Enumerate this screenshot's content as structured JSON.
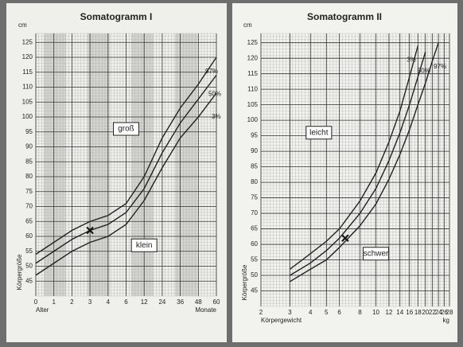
{
  "chart_data": [
    {
      "type": "line",
      "title": "Somatogramm I",
      "categories": [
        "0",
        "1",
        "2",
        "3",
        "4",
        "6",
        "12",
        "24",
        "36",
        "48",
        "60"
      ],
      "xlabel": "Alter",
      "x_unit": "Monate",
      "ylabel": "Körpergröße",
      "y_unit": "cm",
      "ylim": [
        40,
        128
      ],
      "yticks": [
        45,
        50,
        55,
        60,
        65,
        70,
        75,
        80,
        85,
        90,
        95,
        100,
        105,
        110,
        115,
        120,
        125
      ],
      "series": [
        {
          "name": "97%",
          "color": "#222222",
          "values": [
            54,
            58,
            62,
            65,
            67,
            71,
            80,
            93,
            103,
            111,
            120
          ]
        },
        {
          "name": "50%",
          "color": "#222222",
          "values": [
            51,
            55,
            59,
            62,
            64,
            68,
            76,
            88,
            98,
            106,
            114
          ]
        },
        {
          "name": "3%",
          "color": "#222222",
          "values": [
            47,
            51,
            55,
            58,
            60,
            64,
            72,
            83,
            93,
            100,
            108
          ]
        }
      ],
      "annotations": [
        {
          "text": "groß",
          "x": "6",
          "y": 96
        },
        {
          "text": "klein",
          "x": "12",
          "y": 57
        }
      ],
      "marker": {
        "x": "3",
        "y": 62
      }
    },
    {
      "type": "line",
      "title": "Somatogramm II",
      "x": [
        3,
        4,
        5,
        6,
        8,
        10,
        12,
        14,
        16,
        18,
        20,
        22,
        24,
        26
      ],
      "xscale": "log",
      "xlim": [
        2,
        28
      ],
      "xticks": [
        2,
        3,
        4,
        5,
        6,
        8,
        10,
        12,
        14,
        16,
        18,
        20,
        22,
        24,
        26,
        28
      ],
      "xlabel": "Körpergewicht",
      "x_unit": "kg",
      "ylabel": "Körpergröße",
      "y_unit": "cm",
      "ylim": [
        40,
        128
      ],
      "yticks": [
        45,
        50,
        55,
        60,
        65,
        70,
        75,
        80,
        85,
        90,
        95,
        100,
        105,
        110,
        115,
        120,
        125
      ],
      "series": [
        {
          "name": "3%",
          "color": "#222222",
          "values": [
            52,
            57,
            61,
            65,
            74,
            83,
            93,
            103,
            114,
            124,
            null,
            null,
            null,
            null
          ]
        },
        {
          "name": "50%",
          "color": "#222222",
          "values": [
            50,
            54,
            58,
            62,
            70,
            78,
            87,
            96,
            105,
            114,
            122,
            null,
            null,
            null
          ]
        },
        {
          "name": "97%",
          "color": "#222222",
          "values": [
            48,
            52,
            55,
            59,
            66,
            73,
            81,
            89,
            97,
            105,
            112,
            119,
            125,
            null
          ]
        }
      ],
      "annotations": [
        {
          "text": "leicht",
          "x": 4.5,
          "y": 96
        },
        {
          "text": "schwer",
          "x": 10,
          "y": 57
        }
      ],
      "marker": {
        "x": 6.5,
        "y": 62
      }
    }
  ]
}
